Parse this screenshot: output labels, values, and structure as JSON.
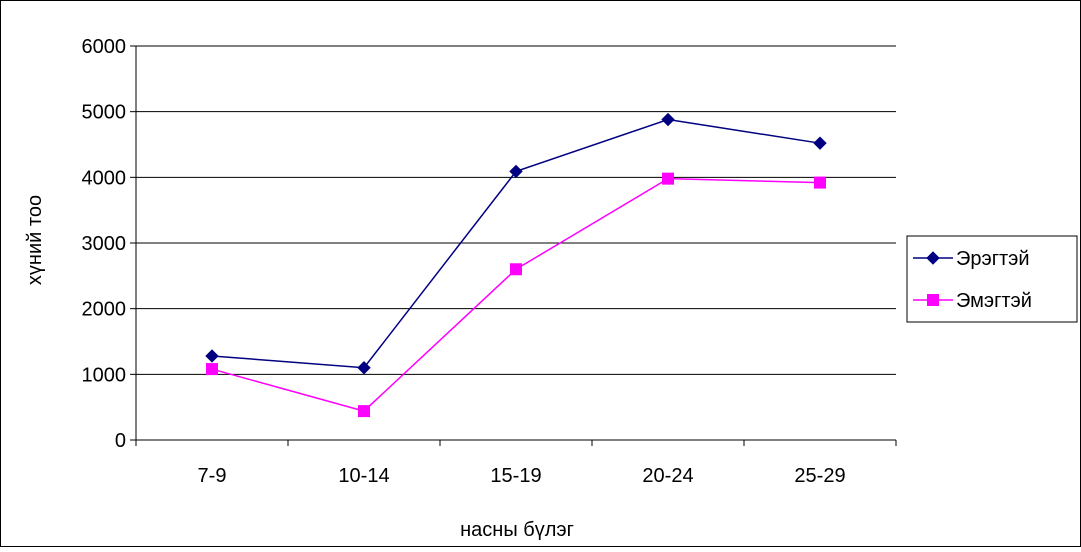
{
  "chart_data": {
    "type": "line",
    "title": "",
    "xlabel": "насны бүлэг",
    "ylabel": "хүний тоо",
    "categories": [
      "7-9",
      "10-14",
      "15-19",
      "20-24",
      "25-29"
    ],
    "ylim": [
      0,
      6000
    ],
    "yticks": [
      0,
      1000,
      2000,
      3000,
      4000,
      5000,
      6000
    ],
    "grid": true,
    "legend_position": "right",
    "series": [
      {
        "name": "Эрэгтэй",
        "values": [
          1280,
          1100,
          4090,
          4880,
          4520
        ],
        "color": "#000080",
        "marker": "diamond"
      },
      {
        "name": "Эмэгтэй",
        "values": [
          1080,
          440,
          2600,
          3980,
          3920
        ],
        "color": "#ff00ff",
        "marker": "square"
      }
    ]
  }
}
